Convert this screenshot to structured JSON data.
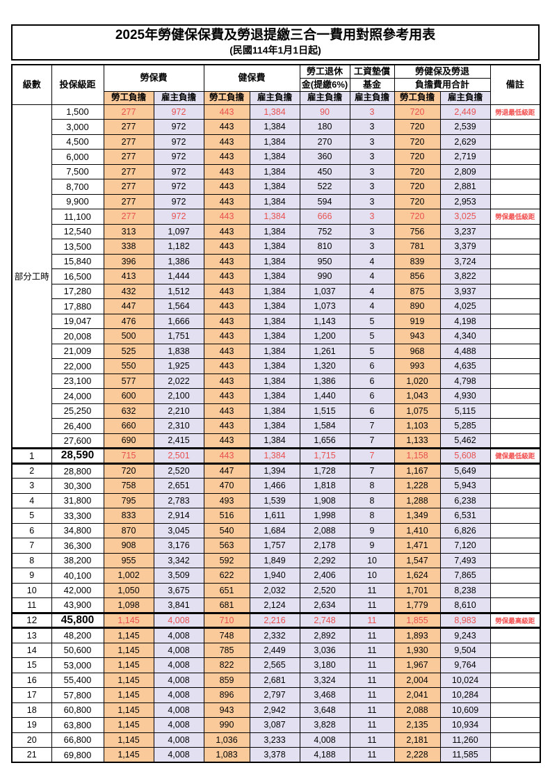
{
  "title": "2025年勞健保保費及勞退提繳三合一費用對照參考用表",
  "subtitle": "(民國114年1月1日起)",
  "header": {
    "grade": "級數",
    "bracket": "投保級距",
    "labor_ins": "勞保費",
    "health_ins": "健保費",
    "pension_line1": "勞工退休",
    "pension_line2": "金(提繳6%)",
    "wage_fund_line1": "工資墊償",
    "wage_fund_line2": "基金",
    "total_line1": "勞健保及勞退",
    "total_line2": "負擔費用合計",
    "remark": "備註",
    "employee_share": "勞工負擔",
    "employer_share": "雇主負擔"
  },
  "part_time_label": "部分工時",
  "part_time_rowspan": 23,
  "colors": {
    "employee_bg": "#fbca9b",
    "employer_bg": "#e2e0f1",
    "highlight_red": "#e85050"
  },
  "rows": [
    {
      "grade": "",
      "bracket": "1,500",
      "v": [
        "277",
        "972",
        "443",
        "1,384",
        "90",
        "3",
        "720",
        "2,449"
      ],
      "remark": "勞退最低級距",
      "red": true,
      "thick": false
    },
    {
      "grade": "",
      "bracket": "3,000",
      "v": [
        "277",
        "972",
        "443",
        "1,384",
        "180",
        "3",
        "720",
        "2,539"
      ],
      "remark": "",
      "red": false,
      "thick": false
    },
    {
      "grade": "",
      "bracket": "4,500",
      "v": [
        "277",
        "972",
        "443",
        "1,384",
        "270",
        "3",
        "720",
        "2,629"
      ],
      "remark": "",
      "red": false,
      "thick": false
    },
    {
      "grade": "",
      "bracket": "6,000",
      "v": [
        "277",
        "972",
        "443",
        "1,384",
        "360",
        "3",
        "720",
        "2,719"
      ],
      "remark": "",
      "red": false,
      "thick": false
    },
    {
      "grade": "",
      "bracket": "7,500",
      "v": [
        "277",
        "972",
        "443",
        "1,384",
        "450",
        "3",
        "720",
        "2,809"
      ],
      "remark": "",
      "red": false,
      "thick": false
    },
    {
      "grade": "",
      "bracket": "8,700",
      "v": [
        "277",
        "972",
        "443",
        "1,384",
        "522",
        "3",
        "720",
        "2,881"
      ],
      "remark": "",
      "red": false,
      "thick": false
    },
    {
      "grade": "",
      "bracket": "9,900",
      "v": [
        "277",
        "972",
        "443",
        "1,384",
        "594",
        "3",
        "720",
        "2,953"
      ],
      "remark": "",
      "red": false,
      "thick": false
    },
    {
      "grade": "",
      "bracket": "11,100",
      "v": [
        "277",
        "972",
        "443",
        "1,384",
        "666",
        "3",
        "720",
        "3,025"
      ],
      "remark": "勞保最低級距",
      "red": true,
      "thick": false
    },
    {
      "grade": "",
      "bracket": "12,540",
      "v": [
        "313",
        "1,097",
        "443",
        "1,384",
        "752",
        "3",
        "756",
        "3,237"
      ],
      "remark": "",
      "red": false,
      "thick": false
    },
    {
      "grade": "",
      "bracket": "13,500",
      "v": [
        "338",
        "1,182",
        "443",
        "1,384",
        "810",
        "3",
        "781",
        "3,379"
      ],
      "remark": "",
      "red": false,
      "thick": false
    },
    {
      "grade": "",
      "bracket": "15,840",
      "v": [
        "396",
        "1,386",
        "443",
        "1,384",
        "950",
        "4",
        "839",
        "3,724"
      ],
      "remark": "",
      "red": false,
      "thick": false
    },
    {
      "grade": "",
      "bracket": "16,500",
      "v": [
        "413",
        "1,444",
        "443",
        "1,384",
        "990",
        "4",
        "856",
        "3,822"
      ],
      "remark": "",
      "red": false,
      "thick": false
    },
    {
      "grade": "",
      "bracket": "17,280",
      "v": [
        "432",
        "1,512",
        "443",
        "1,384",
        "1,037",
        "4",
        "875",
        "3,937"
      ],
      "remark": "",
      "red": false,
      "thick": false
    },
    {
      "grade": "",
      "bracket": "17,880",
      "v": [
        "447",
        "1,564",
        "443",
        "1,384",
        "1,073",
        "4",
        "890",
        "4,025"
      ],
      "remark": "",
      "red": false,
      "thick": false
    },
    {
      "grade": "",
      "bracket": "19,047",
      "v": [
        "476",
        "1,666",
        "443",
        "1,384",
        "1,143",
        "5",
        "919",
        "4,198"
      ],
      "remark": "",
      "red": false,
      "thick": false
    },
    {
      "grade": "",
      "bracket": "20,008",
      "v": [
        "500",
        "1,751",
        "443",
        "1,384",
        "1,200",
        "5",
        "943",
        "4,340"
      ],
      "remark": "",
      "red": false,
      "thick": false
    },
    {
      "grade": "",
      "bracket": "21,009",
      "v": [
        "525",
        "1,838",
        "443",
        "1,384",
        "1,261",
        "5",
        "968",
        "4,488"
      ],
      "remark": "",
      "red": false,
      "thick": false
    },
    {
      "grade": "",
      "bracket": "22,000",
      "v": [
        "550",
        "1,925",
        "443",
        "1,384",
        "1,320",
        "6",
        "993",
        "4,635"
      ],
      "remark": "",
      "red": false,
      "thick": false
    },
    {
      "grade": "",
      "bracket": "23,100",
      "v": [
        "577",
        "2,022",
        "443",
        "1,384",
        "1,386",
        "6",
        "1,020",
        "4,798"
      ],
      "remark": "",
      "red": false,
      "thick": false
    },
    {
      "grade": "",
      "bracket": "24,000",
      "v": [
        "600",
        "2,100",
        "443",
        "1,384",
        "1,440",
        "6",
        "1,043",
        "4,930"
      ],
      "remark": "",
      "red": false,
      "thick": false
    },
    {
      "grade": "",
      "bracket": "25,250",
      "v": [
        "632",
        "2,210",
        "443",
        "1,384",
        "1,515",
        "6",
        "1,075",
        "5,115"
      ],
      "remark": "",
      "red": false,
      "thick": false
    },
    {
      "grade": "",
      "bracket": "26,400",
      "v": [
        "660",
        "2,310",
        "443",
        "1,384",
        "1,584",
        "7",
        "1,103",
        "5,285"
      ],
      "remark": "",
      "red": false,
      "thick": false
    },
    {
      "grade": "",
      "bracket": "27,600",
      "v": [
        "690",
        "2,415",
        "443",
        "1,384",
        "1,656",
        "7",
        "1,133",
        "5,462"
      ],
      "remark": "",
      "red": false,
      "thick": false
    },
    {
      "grade": "1",
      "bracket": "28,590",
      "v": [
        "715",
        "2,501",
        "443",
        "1,384",
        "1,715",
        "7",
        "1,158",
        "5,608"
      ],
      "remark": "健保最低級距",
      "red": true,
      "thick": true
    },
    {
      "grade": "2",
      "bracket": "28,800",
      "v": [
        "720",
        "2,520",
        "447",
        "1,394",
        "1,728",
        "7",
        "1,167",
        "5,649"
      ],
      "remark": "",
      "red": false,
      "thick": false
    },
    {
      "grade": "3",
      "bracket": "30,300",
      "v": [
        "758",
        "2,651",
        "470",
        "1,466",
        "1,818",
        "8",
        "1,228",
        "5,943"
      ],
      "remark": "",
      "red": false,
      "thick": false
    },
    {
      "grade": "4",
      "bracket": "31,800",
      "v": [
        "795",
        "2,783",
        "493",
        "1,539",
        "1,908",
        "8",
        "1,288",
        "6,238"
      ],
      "remark": "",
      "red": false,
      "thick": false
    },
    {
      "grade": "5",
      "bracket": "33,300",
      "v": [
        "833",
        "2,914",
        "516",
        "1,611",
        "1,998",
        "8",
        "1,349",
        "6,531"
      ],
      "remark": "",
      "red": false,
      "thick": false
    },
    {
      "grade": "6",
      "bracket": "34,800",
      "v": [
        "870",
        "3,045",
        "540",
        "1,684",
        "2,088",
        "9",
        "1,410",
        "6,826"
      ],
      "remark": "",
      "red": false,
      "thick": false
    },
    {
      "grade": "7",
      "bracket": "36,300",
      "v": [
        "908",
        "3,176",
        "563",
        "1,757",
        "2,178",
        "9",
        "1,471",
        "7,120"
      ],
      "remark": "",
      "red": false,
      "thick": false
    },
    {
      "grade": "8",
      "bracket": "38,200",
      "v": [
        "955",
        "3,342",
        "592",
        "1,849",
        "2,292",
        "10",
        "1,547",
        "7,493"
      ],
      "remark": "",
      "red": false,
      "thick": false
    },
    {
      "grade": "9",
      "bracket": "40,100",
      "v": [
        "1,002",
        "3,509",
        "622",
        "1,940",
        "2,406",
        "10",
        "1,624",
        "7,865"
      ],
      "remark": "",
      "red": false,
      "thick": false
    },
    {
      "grade": "10",
      "bracket": "42,000",
      "v": [
        "1,050",
        "3,675",
        "651",
        "2,032",
        "2,520",
        "11",
        "1,701",
        "8,238"
      ],
      "remark": "",
      "red": false,
      "thick": false
    },
    {
      "grade": "11",
      "bracket": "43,900",
      "v": [
        "1,098",
        "3,841",
        "681",
        "2,124",
        "2,634",
        "11",
        "1,779",
        "8,610"
      ],
      "remark": "",
      "red": false,
      "thick": false
    },
    {
      "grade": "12",
      "bracket": "45,800",
      "v": [
        "1,145",
        "4,008",
        "710",
        "2,216",
        "2,748",
        "11",
        "1,855",
        "8,983"
      ],
      "remark": "勞保最高級距",
      "red": true,
      "thick": true
    },
    {
      "grade": "13",
      "bracket": "48,200",
      "v": [
        "1,145",
        "4,008",
        "748",
        "2,332",
        "2,892",
        "11",
        "1,893",
        "9,243"
      ],
      "remark": "",
      "red": false,
      "thick": false
    },
    {
      "grade": "14",
      "bracket": "50,600",
      "v": [
        "1,145",
        "4,008",
        "785",
        "2,449",
        "3,036",
        "11",
        "1,930",
        "9,504"
      ],
      "remark": "",
      "red": false,
      "thick": false
    },
    {
      "grade": "15",
      "bracket": "53,000",
      "v": [
        "1,145",
        "4,008",
        "822",
        "2,565",
        "3,180",
        "11",
        "1,967",
        "9,764"
      ],
      "remark": "",
      "red": false,
      "thick": false
    },
    {
      "grade": "16",
      "bracket": "55,400",
      "v": [
        "1,145",
        "4,008",
        "859",
        "2,681",
        "3,324",
        "11",
        "2,004",
        "10,024"
      ],
      "remark": "",
      "red": false,
      "thick": false
    },
    {
      "grade": "17",
      "bracket": "57,800",
      "v": [
        "1,145",
        "4,008",
        "896",
        "2,797",
        "3,468",
        "11",
        "2,041",
        "10,284"
      ],
      "remark": "",
      "red": false,
      "thick": false
    },
    {
      "grade": "18",
      "bracket": "60,800",
      "v": [
        "1,145",
        "4,008",
        "943",
        "2,942",
        "3,648",
        "11",
        "2,088",
        "10,609"
      ],
      "remark": "",
      "red": false,
      "thick": false
    },
    {
      "grade": "19",
      "bracket": "63,800",
      "v": [
        "1,145",
        "4,008",
        "990",
        "3,087",
        "3,828",
        "11",
        "2,135",
        "10,934"
      ],
      "remark": "",
      "red": false,
      "thick": false
    },
    {
      "grade": "20",
      "bracket": "66,800",
      "v": [
        "1,145",
        "4,008",
        "1,036",
        "3,233",
        "4,008",
        "11",
        "2,181",
        "11,260"
      ],
      "remark": "",
      "red": false,
      "thick": false
    },
    {
      "grade": "21",
      "bracket": "69,800",
      "v": [
        "1,145",
        "4,008",
        "1,083",
        "3,378",
        "4,188",
        "11",
        "2,228",
        "11,585"
      ],
      "remark": "",
      "red": false,
      "thick": false
    }
  ]
}
